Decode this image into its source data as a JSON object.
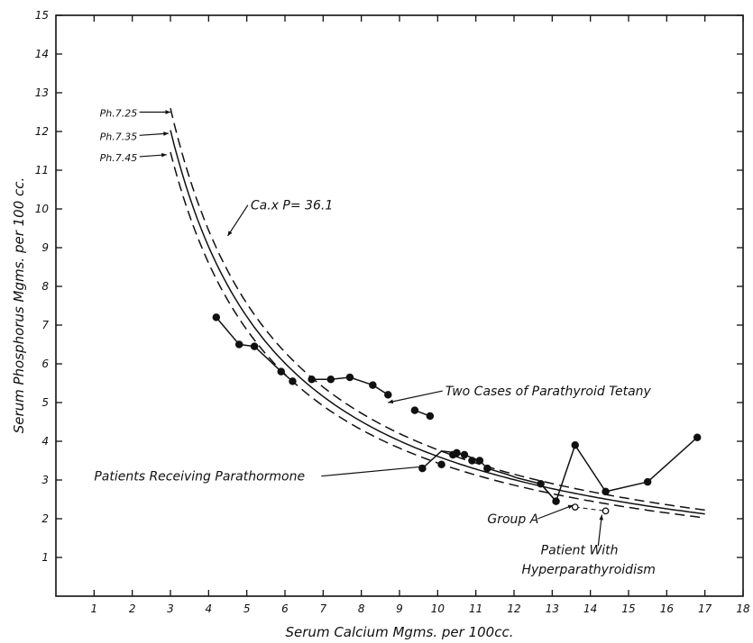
{
  "chart_data": {
    "type": "line",
    "xlabel": "Serum Calcium Mgms. per 100cc.",
    "ylabel": "Serum Phosphorus Mgms. per 100 cc.",
    "xlim": [
      0,
      18
    ],
    "ylim": [
      0,
      15
    ],
    "x_ticks": [
      1,
      2,
      3,
      4,
      5,
      6,
      7,
      8,
      9,
      10,
      11,
      12,
      13,
      14,
      15,
      16,
      17,
      18
    ],
    "y_ticks": [
      1,
      2,
      3,
      4,
      5,
      6,
      7,
      8,
      9,
      10,
      11,
      12,
      13,
      14,
      15
    ],
    "grid": false,
    "curves": [
      {
        "name": "Ca x P = 36.1",
        "label": "Ph.7.35",
        "product": 36.1,
        "style": "solid",
        "x_start": 3.0,
        "x_end": 17.0
      },
      {
        "label": "Ph.7.25",
        "product": 37.8,
        "style": "dashed",
        "x_start": 3.0,
        "x_end": 17.0
      },
      {
        "label": "Ph.7.45",
        "product": 34.4,
        "style": "dashed",
        "x_start": 3.0,
        "x_end": 17.0
      }
    ],
    "series": [
      {
        "name": "Two Cases of Parathyroid Tetany",
        "style": "solid",
        "segments": [
          {
            "x": [
              4.2,
              4.8,
              5.2,
              5.9,
              6.2
            ],
            "y": [
              7.2,
              6.5,
              6.45,
              5.8,
              5.55
            ]
          },
          {
            "x": [
              6.7,
              7.2,
              7.7,
              8.3,
              8.7
            ],
            "y": [
              5.6,
              5.6,
              5.65,
              5.45,
              5.2
            ]
          },
          {
            "x": [
              9.4,
              9.8
            ],
            "y": [
              4.8,
              4.65
            ]
          }
        ]
      },
      {
        "name": "Patients Receiving Parathormone",
        "style": "solid",
        "points": {
          "x": [
            9.6,
            10.1,
            10.4,
            10.5,
            10.7,
            10.9,
            11.1,
            11.3
          ],
          "y": [
            3.3,
            3.4,
            3.65,
            3.7,
            3.65,
            3.5,
            3.5,
            3.3
          ]
        },
        "line": {
          "x": [
            9.6,
            10.1,
            10.5,
            10.7,
            11.1,
            11.3,
            11.8,
            12.1,
            12.7,
            13.1
          ],
          "y": [
            3.3,
            3.75,
            3.7,
            3.65,
            3.5,
            3.3,
            3.15,
            3.05,
            2.9,
            2.45
          ]
        }
      },
      {
        "name": "Group A",
        "style": "dashed",
        "x": [
          13.6,
          14.4
        ],
        "y": [
          2.3,
          2.2
        ],
        "marker": "open"
      },
      {
        "name": "Patient With Hyperparathyroidism",
        "style": "solid",
        "x": [
          12.7,
          13.1,
          13.6,
          14.4,
          15.5,
          16.8
        ],
        "y": [
          2.9,
          2.45,
          3.9,
          2.7,
          2.95,
          4.1
        ]
      }
    ],
    "annotations": [
      {
        "text": "Ca.x P= 36.1",
        "x": 5.1,
        "y": 10.1,
        "arrow_to": [
          4.5,
          9.3
        ]
      },
      {
        "text": "Two Cases of Parathyroid Tetany",
        "x": 10.2,
        "y": 5.3,
        "arrow_to": [
          8.7,
          5.0
        ]
      },
      {
        "text": "Patients Receiving Parathormone",
        "x": 1.0,
        "y": 3.1,
        "arrow_to": [
          9.65,
          3.35
        ]
      },
      {
        "text": "Group A",
        "x": 11.3,
        "y": 2.0,
        "arrow_to": [
          13.55,
          2.35
        ]
      },
      {
        "text": "Patient With",
        "x": 12.7,
        "y": 1.2
      },
      {
        "text": "Hyperparathyroidism",
        "x": 12.2,
        "y": 0.7,
        "arrow_to": [
          14.3,
          2.1
        ]
      },
      {
        "text": "Ph.7.25",
        "x": 1.15,
        "y": 12.5,
        "arrow_to": [
          3.0,
          12.5
        ]
      },
      {
        "text": "Ph.7.35",
        "x": 1.15,
        "y": 11.9,
        "arrow_to": [
          2.95,
          11.95
        ]
      },
      {
        "text": "Ph.7.45",
        "x": 1.15,
        "y": 11.35,
        "arrow_to": [
          2.9,
          11.4
        ]
      }
    ]
  }
}
